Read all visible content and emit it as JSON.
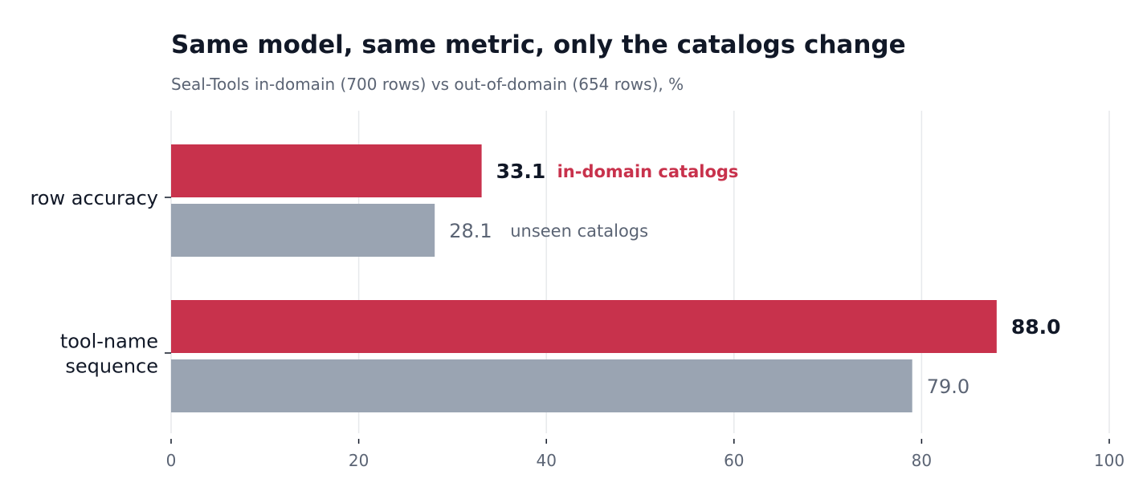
{
  "chart_data": {
    "type": "bar",
    "orientation": "horizontal",
    "title": "Same model, same metric, only the catalogs change",
    "subtitle": "Seal-Tools in-domain (700 rows) vs out-of-domain (654 rows), %",
    "categories": [
      "row accuracy",
      "tool-name sequence"
    ],
    "series": [
      {
        "name": "in-domain catalogs",
        "values": [
          33.1,
          88.0
        ],
        "color": "#c8324c"
      },
      {
        "name": "unseen catalogs",
        "values": [
          28.1,
          79.0
        ],
        "color": "#9aa4b2"
      }
    ],
    "value_labels": [
      [
        "33.1",
        "88.0"
      ],
      [
        "28.1",
        "79.0"
      ]
    ],
    "xlim": [
      0,
      100
    ],
    "xticks": [
      0,
      20,
      40,
      60,
      80,
      100
    ],
    "xtick_labels": [
      "0",
      "20",
      "40",
      "60",
      "80",
      "100"
    ],
    "grid": "vertical",
    "legend": "inline labels beside first category bars"
  }
}
